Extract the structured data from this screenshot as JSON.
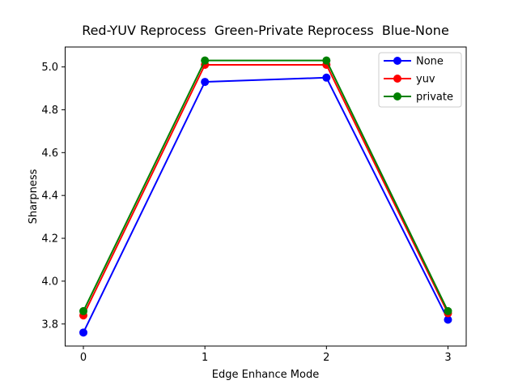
{
  "chart_data": {
    "type": "line",
    "title": "Red-YUV Reprocess  Green-Private Reprocess  Blue-None",
    "xlabel": "Edge Enhance Mode",
    "ylabel": "Sharpness",
    "x": [
      0,
      1,
      2,
      3
    ],
    "series": [
      {
        "name": "None",
        "color": "#0000ff",
        "marker": "circle",
        "values": [
          3.76,
          4.93,
          4.95,
          3.82
        ]
      },
      {
        "name": "yuv",
        "color": "#ff0000",
        "marker": "circle",
        "values": [
          3.84,
          5.01,
          5.01,
          3.85
        ]
      },
      {
        "name": "private",
        "color": "#008000",
        "marker": "circle",
        "values": [
          3.86,
          5.03,
          5.03,
          3.86
        ]
      }
    ],
    "xticks": [
      0,
      1,
      2,
      3
    ],
    "yticks": [
      3.8,
      4.0,
      4.2,
      4.4,
      4.6,
      4.8,
      5.0
    ],
    "xlim": [
      -0.15,
      3.15
    ],
    "ylim": [
      3.697,
      5.093
    ],
    "grid": false,
    "legend_position": "upper right",
    "axis_color": "#000000",
    "background_color": "#ffffff",
    "legend_border_color": "#cccccc"
  }
}
